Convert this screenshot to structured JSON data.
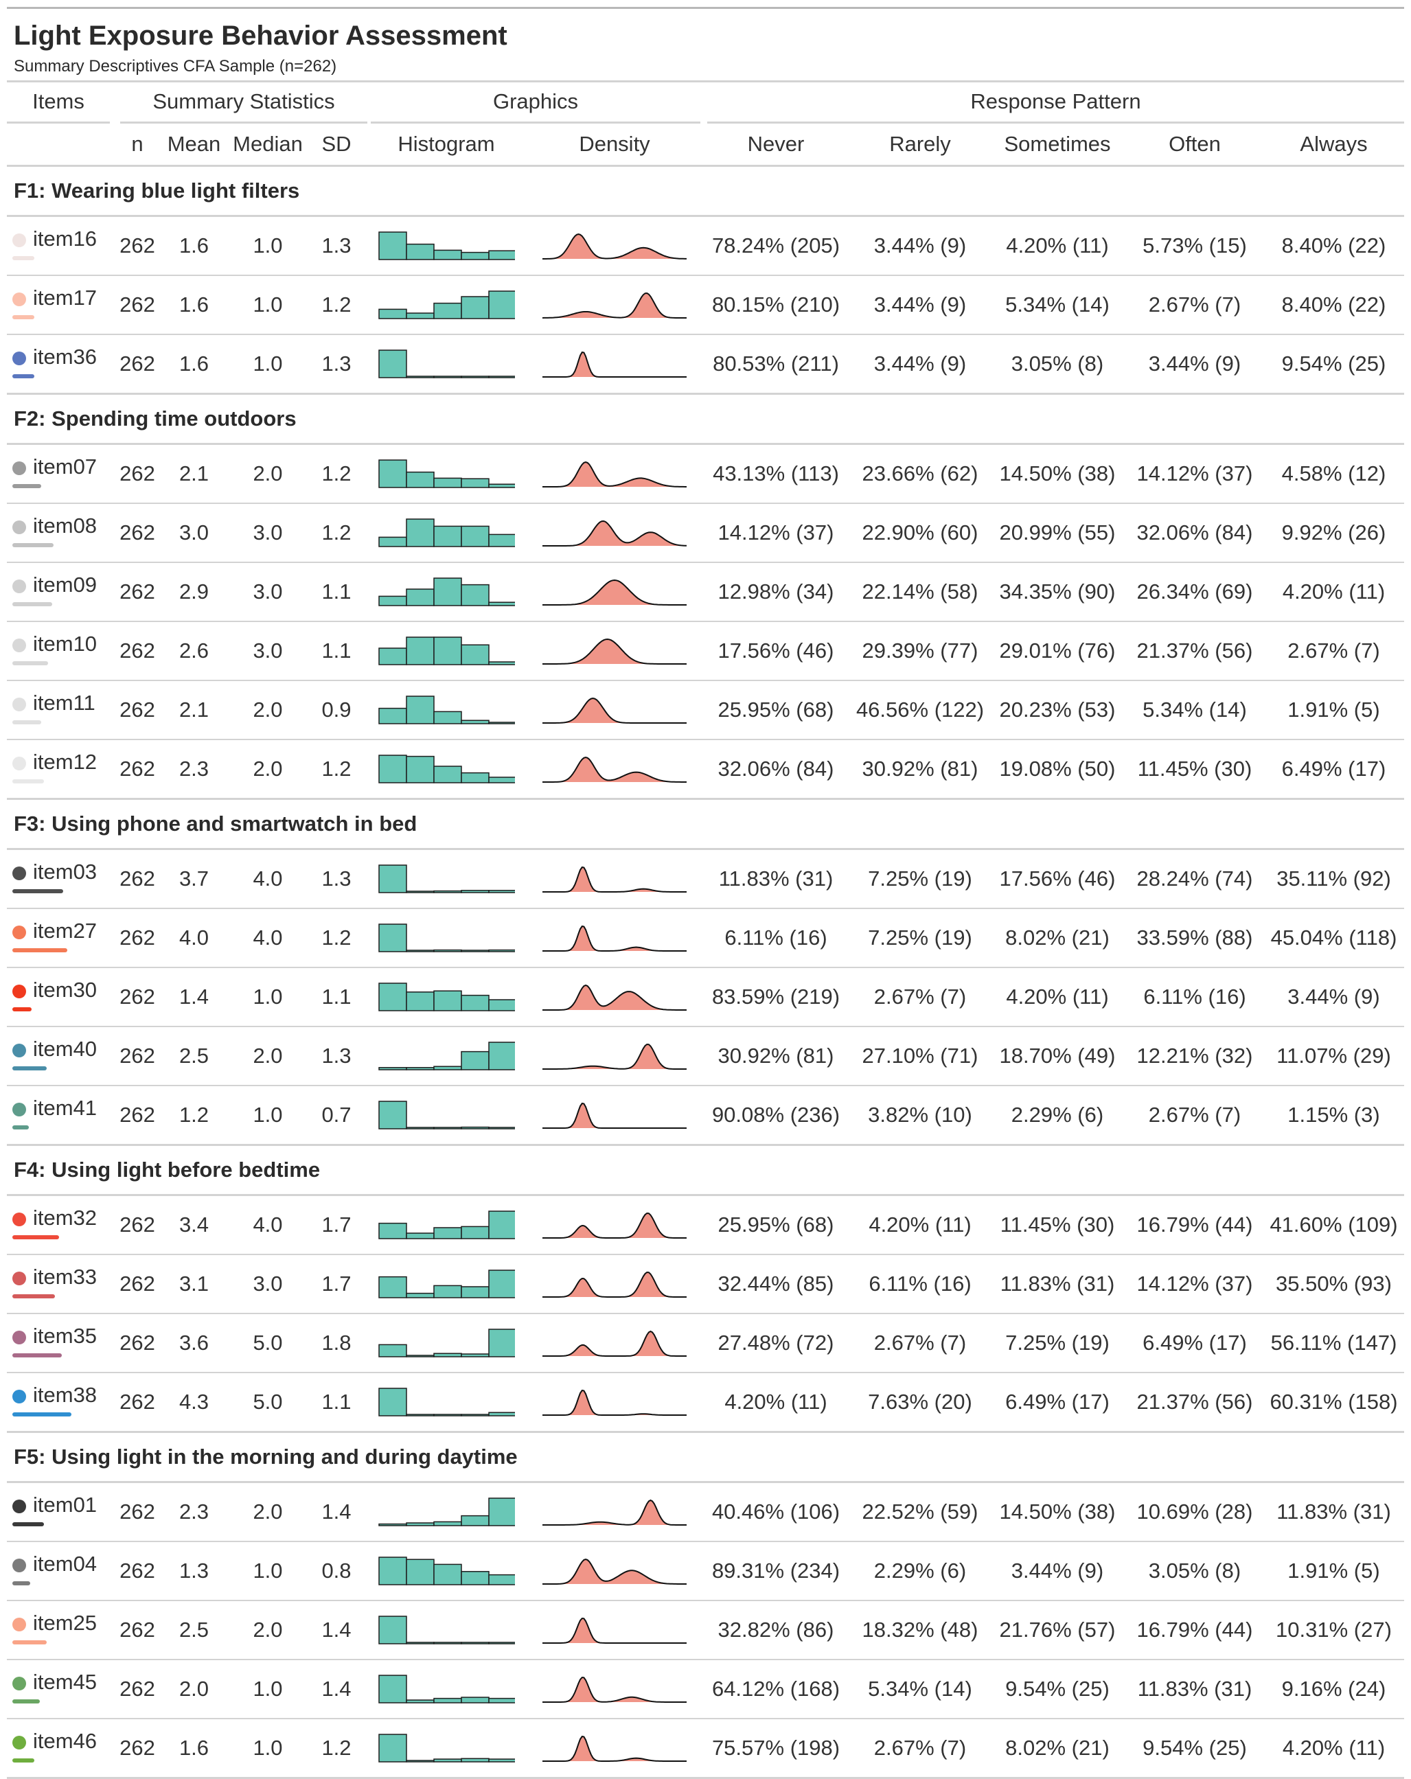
{
  "title": "Light Exposure Behavior Assessment",
  "subtitle": "Summary Descriptives CFA Sample (n=262)",
  "spanners": {
    "items": "Items",
    "summary": "Summary Statistics",
    "graphics": "Graphics",
    "response": "Response Pattern"
  },
  "columns": {
    "n": "n",
    "mean": "Mean",
    "median": "Median",
    "sd": "SD",
    "histogram": "Histogram",
    "density": "Density",
    "never": "Never",
    "rarely": "Rarely",
    "sometimes": "Sometimes",
    "often": "Often",
    "always": "Always"
  },
  "colors": {
    "histogram_fill": "#69c7b6",
    "density_fill": "#f09588",
    "rule": "#d3d3d3"
  },
  "groups": [
    {
      "label": "F1: Wearing blue light filters",
      "items": [
        {
          "item": "item16",
          "color": "#f0e4e2",
          "n": "262",
          "mean": "1.6",
          "median": "1.0",
          "sd": "1.3",
          "never": "78.24% (205)",
          "rarely": "3.44% (9)",
          "sometimes": "4.20% (11)",
          "often": "5.73% (15)",
          "always": "8.40% (22)",
          "hist": [
            0.5,
            0.28,
            0.17,
            0.13,
            0.16
          ],
          "dens": [
            [
              0.25,
              1.0,
              0.6
            ],
            [
              0.7,
              0.45,
              0.9
            ]
          ]
        },
        {
          "item": "item17",
          "color": "#fbbfab",
          "n": "262",
          "mean": "1.6",
          "median": "1.0",
          "sd": "1.2",
          "never": "80.15% (210)",
          "rarely": "3.44% (9)",
          "sometimes": "5.34% (14)",
          "often": "2.67% (7)",
          "always": "8.40% (22)",
          "hist": [
            0.17,
            0.1,
            0.28,
            0.4,
            0.5
          ],
          "dens": [
            [
              0.3,
              0.25,
              0.9
            ],
            [
              0.72,
              1.0,
              0.55
            ]
          ]
        },
        {
          "item": "item36",
          "color": "#5b77bf",
          "n": "262",
          "mean": "1.6",
          "median": "1.0",
          "sd": "1.3",
          "never": "80.53% (211)",
          "rarely": "3.44% (9)",
          "sometimes": "3.05% (8)",
          "often": "3.44% (9)",
          "always": "9.54% (25)",
          "hist": [
            0.5,
            0.02,
            0.02,
            0.02,
            0.02
          ],
          "dens": [
            [
              0.28,
              1.0,
              0.32
            ]
          ]
        }
      ]
    },
    {
      "label": "F2: Spending time outdoors",
      "items": [
        {
          "item": "item07",
          "color": "#9b9b9b",
          "n": "262",
          "mean": "2.1",
          "median": "2.0",
          "sd": "1.2",
          "never": "43.13% (113)",
          "rarely": "23.66% (62)",
          "sometimes": "14.50% (38)",
          "often": "14.12% (37)",
          "always": "4.58% (12)",
          "hist": [
            0.5,
            0.28,
            0.17,
            0.16,
            0.06
          ],
          "dens": [
            [
              0.3,
              1.0,
              0.55
            ],
            [
              0.68,
              0.35,
              0.9
            ]
          ]
        },
        {
          "item": "item08",
          "color": "#c2c2c2",
          "n": "262",
          "mean": "3.0",
          "median": "3.0",
          "sd": "1.2",
          "never": "14.12% (37)",
          "rarely": "22.90% (60)",
          "sometimes": "20.99% (55)",
          "often": "32.06% (84)",
          "always": "9.92% (26)",
          "hist": [
            0.17,
            0.5,
            0.37,
            0.37,
            0.22
          ],
          "dens": [
            [
              0.42,
              1.0,
              0.7
            ],
            [
              0.75,
              0.55,
              0.8
            ]
          ]
        },
        {
          "item": "item09",
          "color": "#d0d0d0",
          "n": "262",
          "mean": "2.9",
          "median": "3.0",
          "sd": "1.1",
          "never": "12.98% (34)",
          "rarely": "22.14% (58)",
          "sometimes": "34.35% (90)",
          "often": "26.34% (69)",
          "always": "4.20% (11)",
          "hist": [
            0.17,
            0.3,
            0.5,
            0.38,
            0.06
          ],
          "dens": [
            [
              0.5,
              1.0,
              1.0
            ]
          ]
        },
        {
          "item": "item10",
          "color": "#d8d8d8",
          "n": "262",
          "mean": "2.6",
          "median": "3.0",
          "sd": "1.1",
          "never": "17.56% (46)",
          "rarely": "29.39% (77)",
          "sometimes": "29.01% (76)",
          "often": "21.37% (56)",
          "always": "2.67% (7)",
          "hist": [
            0.3,
            0.5,
            0.5,
            0.36,
            0.05
          ],
          "dens": [
            [
              0.45,
              1.0,
              0.95
            ]
          ]
        },
        {
          "item": "item11",
          "color": "#e0e0e0",
          "n": "262",
          "mean": "2.1",
          "median": "2.0",
          "sd": "0.9",
          "never": "25.95% (68)",
          "rarely": "46.56% (122)",
          "sometimes": "20.23% (53)",
          "often": "5.34% (14)",
          "always": "1.91% (5)",
          "hist": [
            0.28,
            0.5,
            0.22,
            0.06,
            0.02
          ],
          "dens": [
            [
              0.35,
              1.0,
              0.7
            ]
          ]
        },
        {
          "item": "item12",
          "color": "#e8e8e8",
          "n": "262",
          "mean": "2.3",
          "median": "2.0",
          "sd": "1.2",
          "never": "32.06% (84)",
          "rarely": "30.92% (81)",
          "sometimes": "19.08% (50)",
          "often": "11.45% (30)",
          "always": "6.49% (17)",
          "hist": [
            0.5,
            0.48,
            0.3,
            0.18,
            0.1
          ],
          "dens": [
            [
              0.3,
              1.0,
              0.6
            ],
            [
              0.65,
              0.4,
              0.9
            ]
          ]
        }
      ]
    },
    {
      "label": "F3: Using phone and smartwatch in bed",
      "items": [
        {
          "item": "item03",
          "color": "#4f4f4f",
          "n": "262",
          "mean": "3.7",
          "median": "4.0",
          "sd": "1.3",
          "never": "11.83% (31)",
          "rarely": "7.25% (19)",
          "sometimes": "17.56% (46)",
          "often": "28.24% (74)",
          "always": "35.11% (92)",
          "hist": [
            0.5,
            0.02,
            0.03,
            0.04,
            0.04
          ],
          "dens": [
            [
              0.28,
              1.0,
              0.35
            ],
            [
              0.7,
              0.12,
              0.6
            ]
          ]
        },
        {
          "item": "item27",
          "color": "#f47a55",
          "n": "262",
          "mean": "4.0",
          "median": "4.0",
          "sd": "1.2",
          "never": "6.11% (16)",
          "rarely": "7.25% (19)",
          "sometimes": "8.02% (21)",
          "often": "33.59% (88)",
          "always": "45.04% (118)",
          "hist": [
            0.5,
            0.02,
            0.03,
            0.02,
            0.03
          ],
          "dens": [
            [
              0.28,
              1.0,
              0.35
            ],
            [
              0.65,
              0.15,
              0.6
            ]
          ]
        },
        {
          "item": "item30",
          "color": "#f03a1e",
          "n": "262",
          "mean": "1.4",
          "median": "1.0",
          "sd": "1.1",
          "never": "83.59% (219)",
          "rarely": "2.67% (7)",
          "sometimes": "4.20% (11)",
          "often": "6.11% (16)",
          "always": "3.44% (9)",
          "hist": [
            0.5,
            0.34,
            0.36,
            0.28,
            0.2
          ],
          "dens": [
            [
              0.3,
              1.0,
              0.5
            ],
            [
              0.6,
              0.75,
              0.9
            ]
          ]
        },
        {
          "item": "item40",
          "color": "#4a8ea8",
          "n": "262",
          "mean": "2.5",
          "median": "2.0",
          "sd": "1.3",
          "never": "30.92% (81)",
          "rarely": "27.10% (71)",
          "sometimes": "18.70% (49)",
          "often": "12.21% (32)",
          "always": "11.07% (29)",
          "hist": [
            0.04,
            0.04,
            0.06,
            0.33,
            0.5
          ],
          "dens": [
            [
              0.35,
              0.12,
              0.8
            ],
            [
              0.73,
              1.0,
              0.5
            ]
          ]
        },
        {
          "item": "item41",
          "color": "#5e9c8b",
          "n": "262",
          "mean": "1.2",
          "median": "1.0",
          "sd": "0.7",
          "never": "90.08% (236)",
          "rarely": "3.82% (10)",
          "sometimes": "2.29% (6)",
          "often": "2.67% (7)",
          "always": "1.15% (3)",
          "hist": [
            0.5,
            0.02,
            0.02,
            0.03,
            0.02
          ],
          "dens": [
            [
              0.28,
              1.0,
              0.35
            ]
          ]
        }
      ]
    },
    {
      "label": "F4: Using light before bedtime",
      "items": [
        {
          "item": "item32",
          "color": "#ef4b3a",
          "n": "262",
          "mean": "3.4",
          "median": "4.0",
          "sd": "1.7",
          "never": "25.95% (68)",
          "rarely": "4.20% (11)",
          "sometimes": "11.45% (30)",
          "often": "16.79% (44)",
          "always": "41.60% (109)",
          "hist": [
            0.28,
            0.1,
            0.2,
            0.22,
            0.5
          ],
          "dens": [
            [
              0.28,
              0.5,
              0.45
            ],
            [
              0.73,
              1.0,
              0.5
            ]
          ]
        },
        {
          "item": "item33",
          "color": "#d45b5b",
          "n": "262",
          "mean": "3.1",
          "median": "3.0",
          "sd": "1.7",
          "never": "32.44% (85)",
          "rarely": "6.11% (16)",
          "sometimes": "11.83% (31)",
          "often": "14.12% (37)",
          "always": "35.50% (93)",
          "hist": [
            0.38,
            0.08,
            0.22,
            0.2,
            0.5
          ],
          "dens": [
            [
              0.28,
              0.75,
              0.45
            ],
            [
              0.73,
              1.0,
              0.5
            ]
          ]
        },
        {
          "item": "item35",
          "color": "#a96b89",
          "n": "262",
          "mean": "3.6",
          "median": "5.0",
          "sd": "1.8",
          "never": "27.48% (72)",
          "rarely": "2.67% (7)",
          "sometimes": "7.25% (19)",
          "often": "6.49% (17)",
          "always": "56.11% (147)",
          "hist": [
            0.22,
            0.02,
            0.06,
            0.05,
            0.5
          ],
          "dens": [
            [
              0.28,
              0.45,
              0.45
            ],
            [
              0.75,
              1.0,
              0.45
            ]
          ]
        },
        {
          "item": "item38",
          "color": "#2f8fd1",
          "n": "262",
          "mean": "4.3",
          "median": "5.0",
          "sd": "1.1",
          "never": "4.20% (11)",
          "rarely": "7.63% (20)",
          "sometimes": "6.49% (17)",
          "often": "21.37% (56)",
          "always": "60.31% (158)",
          "hist": [
            0.5,
            0.02,
            0.02,
            0.02,
            0.06
          ],
          "dens": [
            [
              0.28,
              1.0,
              0.35
            ],
            [
              0.7,
              0.05,
              0.5
            ]
          ]
        }
      ]
    },
    {
      "label": "F5: Using light in the morning and during daytime",
      "items": [
        {
          "item": "item01",
          "color": "#3a3a3a",
          "n": "262",
          "mean": "2.3",
          "median": "2.0",
          "sd": "1.4",
          "never": "40.46% (106)",
          "rarely": "22.52% (59)",
          "sometimes": "14.50% (38)",
          "often": "10.69% (28)",
          "always": "11.83% (31)",
          "hist": [
            0.03,
            0.05,
            0.07,
            0.18,
            0.5
          ],
          "dens": [
            [
              0.4,
              0.12,
              0.8
            ],
            [
              0.75,
              1.0,
              0.45
            ]
          ]
        },
        {
          "item": "item04",
          "color": "#7c7c7c",
          "n": "262",
          "mean": "1.3",
          "median": "1.0",
          "sd": "0.8",
          "never": "89.31% (234)",
          "rarely": "2.29% (6)",
          "sometimes": "3.44% (9)",
          "often": "3.05% (8)",
          "always": "1.91% (5)",
          "hist": [
            0.5,
            0.46,
            0.37,
            0.24,
            0.18
          ],
          "dens": [
            [
              0.3,
              1.0,
              0.55
            ],
            [
              0.62,
              0.55,
              0.9
            ]
          ]
        },
        {
          "item": "item25",
          "color": "#f9a487",
          "n": "262",
          "mean": "2.5",
          "median": "2.0",
          "sd": "1.4",
          "never": "32.82% (86)",
          "rarely": "18.32% (48)",
          "sometimes": "21.76% (57)",
          "often": "16.79% (44)",
          "always": "10.31% (27)",
          "hist": [
            0.5,
            0.02,
            0.02,
            0.02,
            0.02
          ],
          "dens": [
            [
              0.28,
              1.0,
              0.4
            ]
          ]
        },
        {
          "item": "item45",
          "color": "#6aa663",
          "n": "262",
          "mean": "2.0",
          "median": "1.0",
          "sd": "1.4",
          "never": "64.12% (168)",
          "rarely": "5.34% (14)",
          "sometimes": "9.54% (25)",
          "often": "11.83% (31)",
          "always": "9.16% (24)",
          "hist": [
            0.5,
            0.05,
            0.08,
            0.1,
            0.08
          ],
          "dens": [
            [
              0.28,
              1.0,
              0.4
            ],
            [
              0.62,
              0.2,
              0.7
            ]
          ]
        },
        {
          "item": "item46",
          "color": "#6fae3e",
          "n": "262",
          "mean": "1.6",
          "median": "1.0",
          "sd": "1.2",
          "never": "75.57% (198)",
          "rarely": "2.67% (7)",
          "sometimes": "8.02% (21)",
          "often": "9.54% (25)",
          "always": "4.20% (11)",
          "hist": [
            0.5,
            0.02,
            0.05,
            0.06,
            0.05
          ],
          "dens": [
            [
              0.28,
              1.0,
              0.35
            ],
            [
              0.65,
              0.12,
              0.6
            ]
          ]
        }
      ]
    }
  ]
}
